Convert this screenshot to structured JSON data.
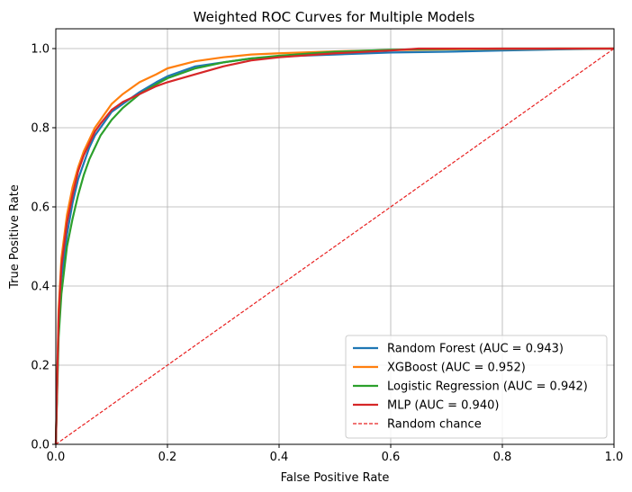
{
  "chart_data": {
    "type": "line",
    "title": "Weighted ROC Curves for Multiple Models",
    "xlabel": "False Positive Rate",
    "ylabel": "True Positive Rate",
    "xlim": [
      0.0,
      1.0
    ],
    "ylim": [
      0.0,
      1.05
    ],
    "xticks": [
      "0.0",
      "0.2",
      "0.4",
      "0.6",
      "0.8",
      "1.0"
    ],
    "yticks": [
      "0.0",
      "0.2",
      "0.4",
      "0.6",
      "0.8",
      "1.0"
    ],
    "grid": true,
    "legend_position": "lower-right",
    "series": [
      {
        "name": "Random Forest (AUC = 0.943)",
        "color": "#1f77b4",
        "style": "solid",
        "x": [
          0,
          0.005,
          0.01,
          0.02,
          0.03,
          0.04,
          0.05,
          0.06,
          0.07,
          0.08,
          0.1,
          0.12,
          0.15,
          0.18,
          0.2,
          0.25,
          0.3,
          0.35,
          0.4,
          0.5,
          0.6,
          0.7,
          0.8,
          0.9,
          1.0
        ],
        "y": [
          0,
          0.3,
          0.42,
          0.53,
          0.61,
          0.67,
          0.71,
          0.75,
          0.78,
          0.8,
          0.84,
          0.86,
          0.89,
          0.915,
          0.93,
          0.955,
          0.965,
          0.975,
          0.98,
          0.985,
          0.99,
          0.992,
          0.995,
          0.998,
          1.0
        ]
      },
      {
        "name": "XGBoost (AUC = 0.952)",
        "color": "#ff7f0e",
        "style": "solid",
        "x": [
          0,
          0.005,
          0.01,
          0.02,
          0.03,
          0.04,
          0.05,
          0.06,
          0.07,
          0.08,
          0.1,
          0.12,
          0.15,
          0.18,
          0.2,
          0.25,
          0.3,
          0.35,
          0.4,
          0.5,
          0.6,
          0.7,
          0.8,
          0.9,
          1.0
        ],
        "y": [
          0,
          0.34,
          0.47,
          0.58,
          0.65,
          0.7,
          0.74,
          0.77,
          0.8,
          0.82,
          0.86,
          0.885,
          0.915,
          0.935,
          0.95,
          0.968,
          0.978,
          0.985,
          0.988,
          0.993,
          0.996,
          0.998,
          0.999,
          1.0,
          1.0
        ]
      },
      {
        "name": "Logistic Regression (AUC = 0.942)",
        "color": "#2ca02c",
        "style": "solid",
        "x": [
          0,
          0.005,
          0.01,
          0.02,
          0.03,
          0.04,
          0.05,
          0.06,
          0.07,
          0.08,
          0.1,
          0.12,
          0.15,
          0.18,
          0.2,
          0.25,
          0.3,
          0.35,
          0.4,
          0.5,
          0.6,
          0.7,
          0.8,
          0.9,
          1.0
        ],
        "y": [
          0,
          0.27,
          0.38,
          0.5,
          0.57,
          0.63,
          0.68,
          0.72,
          0.75,
          0.78,
          0.82,
          0.85,
          0.885,
          0.91,
          0.925,
          0.95,
          0.965,
          0.975,
          0.982,
          0.992,
          0.997,
          0.999,
          1.0,
          1.0,
          1.0
        ]
      },
      {
        "name": "MLP (AUC = 0.940)",
        "color": "#d62728",
        "style": "solid",
        "x": [
          0,
          0.005,
          0.01,
          0.02,
          0.03,
          0.04,
          0.05,
          0.06,
          0.07,
          0.08,
          0.1,
          0.12,
          0.15,
          0.18,
          0.2,
          0.25,
          0.3,
          0.35,
          0.4,
          0.5,
          0.6,
          0.65,
          0.7,
          0.8,
          0.9,
          1.0
        ],
        "y": [
          0,
          0.32,
          0.45,
          0.56,
          0.63,
          0.69,
          0.73,
          0.76,
          0.79,
          0.81,
          0.845,
          0.865,
          0.885,
          0.905,
          0.915,
          0.935,
          0.955,
          0.97,
          0.978,
          0.988,
          0.995,
          1.0,
          1.0,
          1.0,
          1.0,
          1.0
        ]
      },
      {
        "name": "Random chance",
        "color": "#e82020",
        "style": "dashed",
        "x": [
          0,
          1
        ],
        "y": [
          0,
          1
        ]
      }
    ]
  }
}
